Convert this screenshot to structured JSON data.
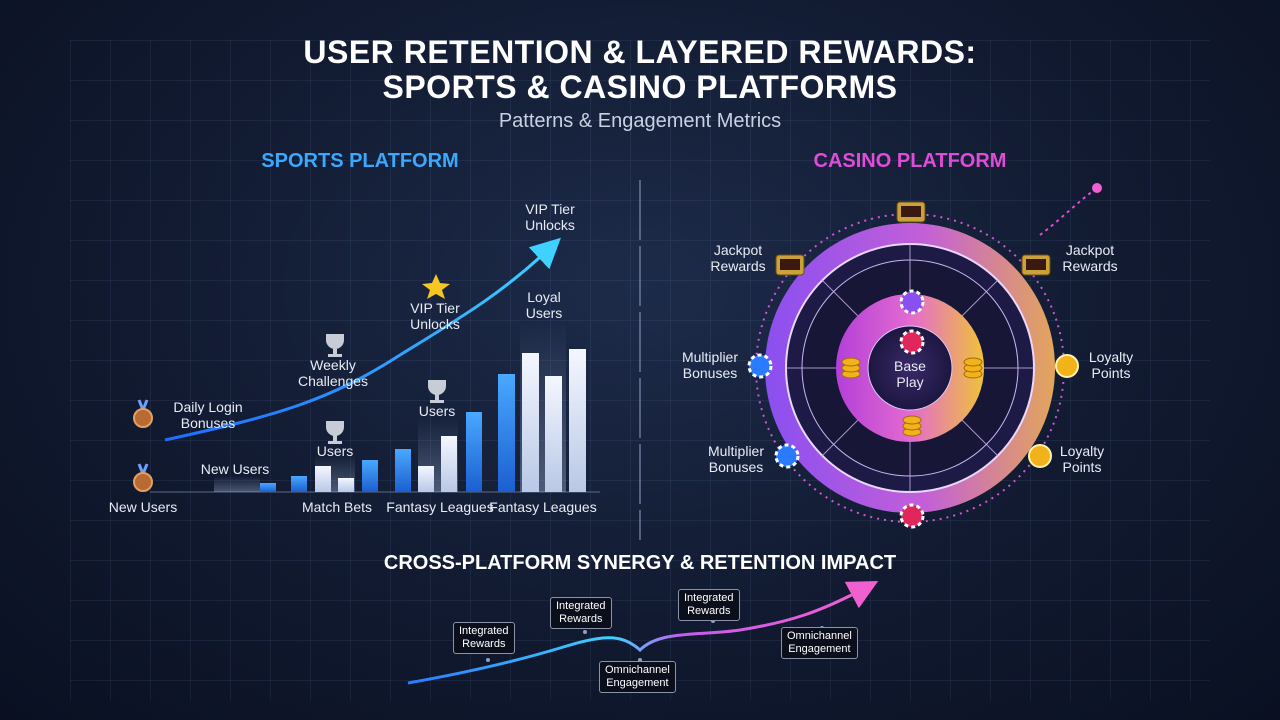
{
  "header": {
    "title_line1": "USER RETENTION & LAYERED REWARDS:",
    "title_line2": "SPORTS & CASINO PLATFORMS",
    "subtitle": "Patterns & Engagement Metrics"
  },
  "sports": {
    "heading": "SPORTS PLATFORM",
    "labels": {
      "vip_top": "VIP Tier\nUnlocks",
      "vip_mid": "VIP Tier\nUnlocks",
      "loyal_users": "Loyal\nUsers",
      "weekly": "Weekly\nChallenges",
      "users_mid": "Users",
      "users_low": "Users",
      "daily": "Daily Login\nBonuses",
      "new_users_axis": "New Users",
      "new_users_left": "New Users",
      "match_bets": "Match Bets",
      "fantasy_1": "Fantasy Leagues",
      "fantasy_2": "Fantasy Leagues"
    }
  },
  "casino": {
    "heading": "CASINO PLATFORM",
    "center": "Base\nPlay",
    "labels": {
      "jackpot_left": "Jackpot\nRewards",
      "jackpot_right": "Jackpot\nRewards",
      "mult_upper": "Multiplier\nBonuses",
      "mult_lower": "Multiplier\nBonuses",
      "loyal_upper": "Loyalty\nPoints",
      "loyal_lower": "Loyalty\nPoints"
    }
  },
  "synergy": {
    "heading": "CROSS-PLATFORM SYNERGY & RETENTION IMPACT",
    "boxes": {
      "b1": "Integrated\nRewards",
      "b2": "Integrated\nRewards",
      "b3": "Integrated\nRewards",
      "b4": "Omnichannel\nEngagement",
      "b5": "Omnichannel\nEngagement"
    }
  },
  "colors": {
    "sports_accent": "#38a9ff",
    "casino_accent": "#e14bd9",
    "casino_ring": "#b05cf0",
    "gold": "#f2b21a"
  },
  "icons": [
    "medal-icon",
    "trophy-icon",
    "star-icon",
    "slot-machine-icon",
    "poker-chip-icon",
    "coin-stack-icon",
    "loyalty-coin-icon"
  ]
}
